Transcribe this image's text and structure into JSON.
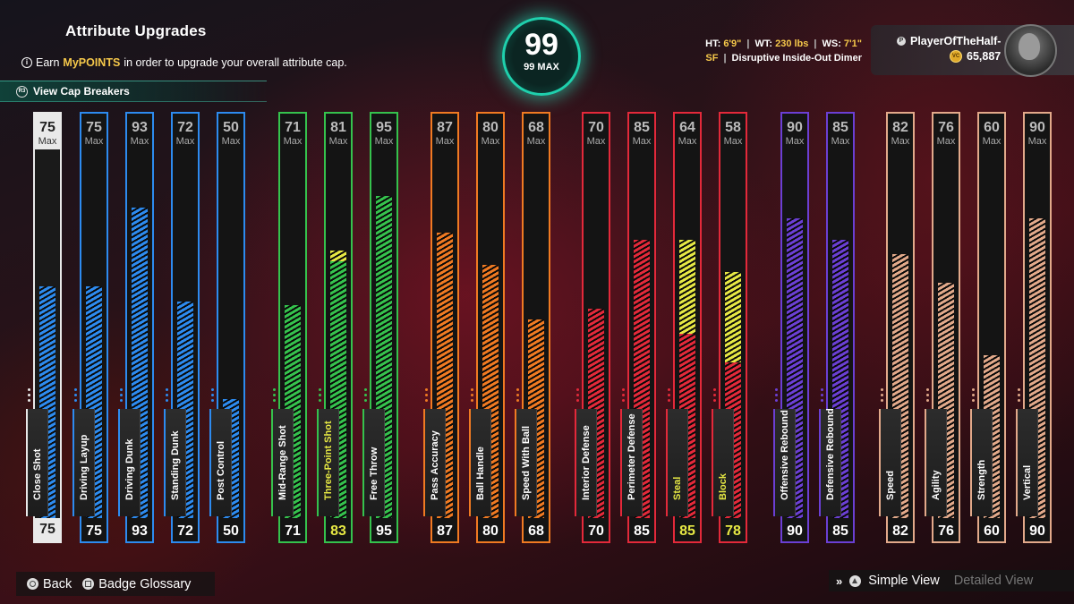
{
  "header": {
    "title": "Attribute Upgrades",
    "earn_prefix": "Earn ",
    "earn_highlight": "MyPOINTS",
    "earn_suffix": " in order to upgrade your overall attribute cap.",
    "cap_breakers": "View Cap Breakers"
  },
  "overall": {
    "value": "99",
    "max": "99 MAX"
  },
  "physicals": {
    "ht_label": "HT:",
    "ht": "6'9\"",
    "wt_label": "WT:",
    "wt": "230 lbs",
    "ws_label": "WS:",
    "ws": "7'1\"",
    "position": "SF",
    "archetype": "Disruptive Inside-Out Dimer"
  },
  "player": {
    "name": "PlayerOfTheHalf-",
    "vc": "65,887"
  },
  "colors": {
    "white": "#e9e9e9",
    "blue": "#2d8bef",
    "green": "#35c24d",
    "orange": "#f07a22",
    "red": "#e3293a",
    "purple": "#6b3fd4",
    "tan": "#e2a98a",
    "boost": "#e6e844"
  },
  "max_word": "Max",
  "attributes": [
    {
      "name": "Close Shot",
      "cap": "75",
      "value": "75",
      "group": "white",
      "level": 0.64
    },
    {
      "name": "Driving Layup",
      "cap": "75",
      "value": "75",
      "group": "blue",
      "level": 0.64
    },
    {
      "name": "Driving Dunk",
      "cap": "93",
      "value": "93",
      "group": "blue",
      "level": 0.86
    },
    {
      "name": "Standing Dunk",
      "cap": "72",
      "value": "72",
      "group": "blue",
      "level": 0.6
    },
    {
      "name": "Post Control",
      "cap": "50",
      "value": "50",
      "group": "blue",
      "level": 0.33
    },
    {
      "name": "Mid-Range Shot",
      "cap": "71",
      "value": "71",
      "group": "green",
      "level": 0.59
    },
    {
      "name": "Three-Point Shot",
      "cap": "81",
      "value": "83",
      "group": "green",
      "level": 0.71,
      "boost_from": 0.71,
      "boost_to": 0.74,
      "boosted": true
    },
    {
      "name": "Free Throw",
      "cap": "95",
      "value": "95",
      "group": "green",
      "level": 0.89
    },
    {
      "name": "Pass Accuracy",
      "cap": "87",
      "value": "87",
      "group": "orange",
      "level": 0.79
    },
    {
      "name": "Ball Handle",
      "cap": "80",
      "value": "80",
      "group": "orange",
      "level": 0.7
    },
    {
      "name": "Speed With Ball",
      "cap": "68",
      "value": "68",
      "group": "orange",
      "level": 0.55
    },
    {
      "name": "Interior Defense",
      "cap": "70",
      "value": "70",
      "group": "red",
      "level": 0.58
    },
    {
      "name": "Perimeter Defense",
      "cap": "85",
      "value": "85",
      "group": "red",
      "level": 0.77
    },
    {
      "name": "Steal",
      "cap": "64",
      "value": "85",
      "group": "red",
      "level": 0.51,
      "boost_from": 0.51,
      "boost_to": 0.77,
      "boosted": true
    },
    {
      "name": "Block",
      "cap": "58",
      "value": "78",
      "group": "red",
      "level": 0.43,
      "boost_from": 0.43,
      "boost_to": 0.68,
      "boosted": true
    },
    {
      "name": "Offensive Rebound",
      "cap": "90",
      "value": "90",
      "group": "purple",
      "level": 0.83
    },
    {
      "name": "Defensive Rebound",
      "cap": "85",
      "value": "85",
      "group": "purple",
      "level": 0.77
    },
    {
      "name": "Speed",
      "cap": "82",
      "value": "82",
      "group": "tan",
      "level": 0.73
    },
    {
      "name": "Agility",
      "cap": "76",
      "value": "76",
      "group": "tan",
      "level": 0.65
    },
    {
      "name": "Strength",
      "cap": "60",
      "value": "60",
      "group": "tan",
      "level": 0.45
    },
    {
      "name": "Vertical",
      "cap": "90",
      "value": "90",
      "group": "tan",
      "level": 0.83
    }
  ],
  "footer": {
    "back": "Back",
    "glossary": "Badge Glossary",
    "simple_view": "Simple View",
    "detailed_view": "Detailed View"
  }
}
